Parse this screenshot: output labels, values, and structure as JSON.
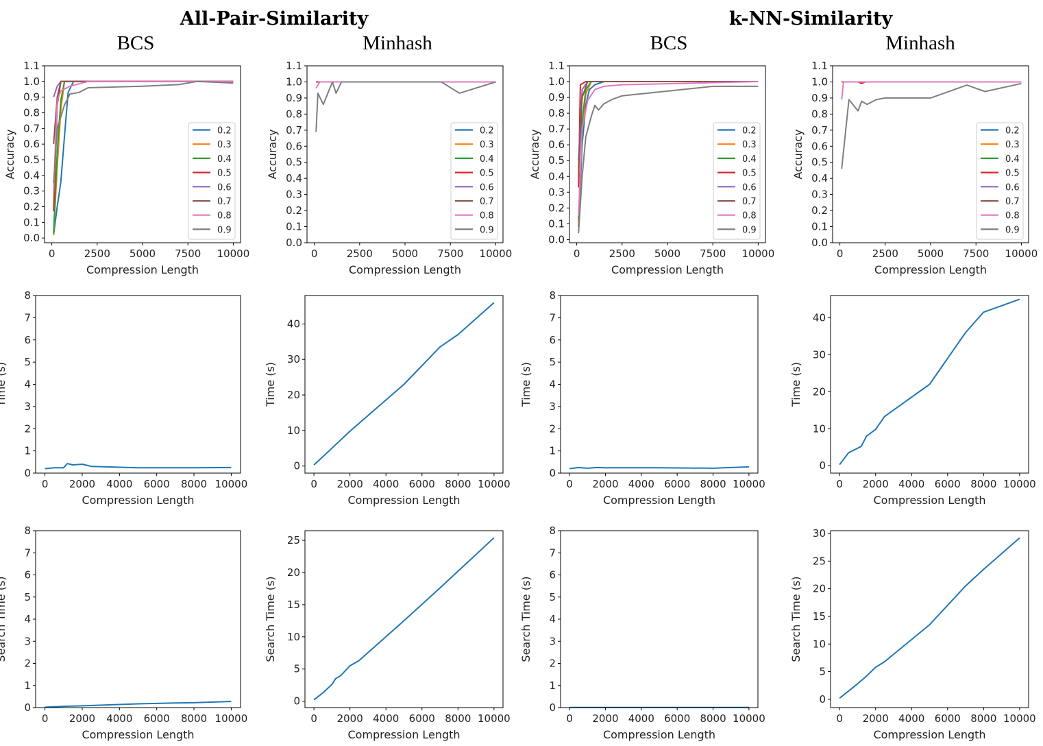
{
  "group_titles": [
    "All-Pair-Similarity",
    "k-NN-Similarity"
  ],
  "column_titles": [
    "BCS",
    "Minhash",
    "BCS",
    "Minhash"
  ],
  "colors": {
    "0.2": "#1f77b4",
    "0.3": "#ff7f0e",
    "0.4": "#2ca02c",
    "0.5": "#d62728",
    "0.6": "#9467bd",
    "0.7": "#8c564b",
    "0.8": "#e377c2",
    "0.9": "#7f7f7f",
    "time": "#1f77b4"
  },
  "chart_data": [
    {
      "id": "apsim-bcs-accuracy",
      "type": "line",
      "xlabel": "Compression Length",
      "ylabel": "Accuracy",
      "xlim": [
        -400,
        10400
      ],
      "ylim": [
        -0.03,
        1.1
      ],
      "xticks": [
        0,
        2500,
        5000,
        7500,
        10000
      ],
      "yticks": [
        0.0,
        0.1,
        0.2,
        0.3,
        0.4,
        0.5,
        0.6,
        0.7,
        0.8,
        0.9,
        1.0,
        1.1
      ],
      "ytick_labels": [
        "0.0",
        "0.1",
        "0.2",
        "0.3",
        "0.4",
        "0.5",
        "0.6",
        "0.7",
        "0.8",
        "0.9",
        "1.0",
        "1.1"
      ],
      "legend": "right",
      "series": [
        {
          "name": "0.2",
          "x": [
            100,
            300,
            500,
            700,
            900,
            1200,
            10000
          ],
          "y": [
            0.02,
            0.2,
            0.36,
            0.65,
            0.93,
            1.0,
            1.0
          ]
        },
        {
          "name": "0.3",
          "x": [
            100,
            300,
            500,
            700,
            10000
          ],
          "y": [
            0.02,
            0.45,
            0.82,
            1.0,
            1.0
          ]
        },
        {
          "name": "0.4",
          "x": [
            100,
            300,
            500,
            700,
            10000
          ],
          "y": [
            0.03,
            0.55,
            0.88,
            1.0,
            1.0
          ]
        },
        {
          "name": "0.5",
          "x": [
            100,
            300,
            500,
            10000
          ],
          "y": [
            0.17,
            0.85,
            1.0,
            1.0
          ]
        },
        {
          "name": "0.6",
          "x": [
            100,
            300,
            500,
            10000
          ],
          "y": [
            0.9,
            0.97,
            1.0,
            1.0
          ]
        },
        {
          "name": "0.7",
          "x": [
            100,
            300,
            500,
            10000
          ],
          "y": [
            0.6,
            0.9,
            1.0,
            1.0
          ]
        },
        {
          "name": "0.8",
          "x": [
            100,
            300,
            500,
            1000,
            2000,
            10000
          ],
          "y": [
            0.3,
            0.88,
            0.94,
            0.97,
            1.0,
            1.0
          ]
        },
        {
          "name": "0.9",
          "x": [
            100,
            300,
            700,
            1000,
            1500,
            2000,
            5000,
            7000,
            8000,
            10000
          ],
          "y": [
            0.35,
            0.7,
            0.85,
            0.92,
            0.93,
            0.96,
            0.97,
            0.98,
            1.0,
            0.99
          ]
        }
      ]
    },
    {
      "id": "apsim-minhash-accuracy",
      "type": "line",
      "xlabel": "Compression Length",
      "ylabel": "Accuracy",
      "xlim": [
        -400,
        10400
      ],
      "ylim": [
        0.0,
        1.1
      ],
      "xticks": [
        0,
        2500,
        5000,
        7500,
        10000
      ],
      "yticks": [
        0.0,
        0.1,
        0.2,
        0.3,
        0.4,
        0.5,
        0.6,
        0.7,
        0.8,
        0.9,
        1.0,
        1.1
      ],
      "ytick_labels": [
        "0.0",
        "0.1",
        "0.2",
        "0.3",
        "0.4",
        "0.5",
        "0.6",
        "0.7",
        "0.8",
        "0.9",
        "1.0",
        "1.1"
      ],
      "legend": "right",
      "series": [
        {
          "name": "0.2",
          "x": [
            100,
            10000
          ],
          "y": [
            1.0,
            1.0
          ]
        },
        {
          "name": "0.3",
          "x": [
            100,
            10000
          ],
          "y": [
            1.0,
            1.0
          ]
        },
        {
          "name": "0.4",
          "x": [
            100,
            10000
          ],
          "y": [
            1.0,
            1.0
          ]
        },
        {
          "name": "0.5",
          "x": [
            100,
            10000
          ],
          "y": [
            1.0,
            1.0
          ]
        },
        {
          "name": "0.6",
          "x": [
            100,
            10000
          ],
          "y": [
            1.0,
            1.0
          ]
        },
        {
          "name": "0.7",
          "x": [
            100,
            10000
          ],
          "y": [
            1.0,
            1.0
          ]
        },
        {
          "name": "0.8",
          "x": [
            100,
            300,
            10000
          ],
          "y": [
            0.96,
            1.0,
            1.0
          ]
        },
        {
          "name": "0.9",
          "x": [
            100,
            200,
            500,
            1000,
            1200,
            1500,
            7000,
            8000,
            10000
          ],
          "y": [
            0.69,
            0.93,
            0.86,
            1.0,
            0.93,
            1.0,
            1.0,
            0.93,
            1.0
          ]
        }
      ]
    },
    {
      "id": "knn-bcs-accuracy",
      "type": "line",
      "xlabel": "Compression Length",
      "ylabel": "Accuracy",
      "xlim": [
        -400,
        10400
      ],
      "ylim": [
        -0.02,
        1.1
      ],
      "xticks": [
        0,
        2500,
        5000,
        7500,
        10000
      ],
      "yticks": [
        0.0,
        0.1,
        0.2,
        0.3,
        0.4,
        0.5,
        0.6,
        0.7,
        0.8,
        0.9,
        1.0,
        1.1
      ],
      "ytick_labels": [
        "0.0",
        "0.1",
        "0.2",
        "0.3",
        "0.4",
        "0.5",
        "0.6",
        "0.7",
        "0.8",
        "0.9",
        "1.0",
        "1.1"
      ],
      "legend": "right",
      "series": [
        {
          "name": "0.2",
          "x": [
            100,
            300,
            500,
            700,
            1000,
            1500,
            10000
          ],
          "y": [
            0.08,
            0.6,
            0.85,
            0.95,
            0.98,
            1.0,
            1.0
          ]
        },
        {
          "name": "0.3",
          "x": [
            100,
            300,
            500,
            800,
            10000
          ],
          "y": [
            0.1,
            0.7,
            0.92,
            1.0,
            1.0
          ]
        },
        {
          "name": "0.4",
          "x": [
            100,
            300,
            500,
            800,
            10000
          ],
          "y": [
            0.12,
            0.75,
            0.95,
            1.0,
            1.0
          ]
        },
        {
          "name": "0.5",
          "x": [
            100,
            200,
            500,
            10000
          ],
          "y": [
            0.33,
            0.98,
            1.0,
            1.0
          ]
        },
        {
          "name": "0.6",
          "x": [
            100,
            300,
            600,
            10000
          ],
          "y": [
            0.5,
            0.95,
            1.0,
            1.0
          ]
        },
        {
          "name": "0.7",
          "x": [
            100,
            300,
            600,
            10000
          ],
          "y": [
            0.45,
            0.9,
            1.0,
            1.0
          ]
        },
        {
          "name": "0.8",
          "x": [
            100,
            300,
            600,
            1000,
            1500,
            2500,
            10000
          ],
          "y": [
            0.15,
            0.7,
            0.88,
            0.95,
            0.97,
            0.98,
            1.0
          ]
        },
        {
          "name": "0.9",
          "x": [
            100,
            300,
            500,
            800,
            1000,
            1200,
            1500,
            2000,
            2500,
            5000,
            7500,
            10000
          ],
          "y": [
            0.04,
            0.4,
            0.65,
            0.78,
            0.85,
            0.82,
            0.86,
            0.89,
            0.91,
            0.94,
            0.97,
            0.97
          ]
        }
      ]
    },
    {
      "id": "knn-minhash-accuracy",
      "type": "line",
      "xlabel": "Compression Length",
      "ylabel": "Accuracy",
      "xlim": [
        -400,
        10400
      ],
      "ylim": [
        0.0,
        1.1
      ],
      "xticks": [
        0,
        2500,
        5000,
        7500,
        10000
      ],
      "yticks": [
        0.0,
        0.1,
        0.2,
        0.3,
        0.4,
        0.5,
        0.6,
        0.7,
        0.8,
        0.9,
        1.0,
        1.1
      ],
      "ytick_labels": [
        "0.0",
        "0.1",
        "0.2",
        "0.3",
        "0.4",
        "0.5",
        "0.6",
        "0.7",
        "0.8",
        "0.9",
        "1.0",
        "1.1"
      ],
      "legend": "right",
      "series": [
        {
          "name": "0.2",
          "x": [
            100,
            10000
          ],
          "y": [
            1.0,
            1.0
          ]
        },
        {
          "name": "0.3",
          "x": [
            100,
            10000
          ],
          "y": [
            1.0,
            1.0
          ]
        },
        {
          "name": "0.4",
          "x": [
            100,
            10000
          ],
          "y": [
            1.0,
            1.0
          ]
        },
        {
          "name": "0.5",
          "x": [
            100,
            1000,
            1200,
            1400,
            10000
          ],
          "y": [
            1.0,
            1.0,
            0.99,
            1.0,
            1.0
          ]
        },
        {
          "name": "0.6",
          "x": [
            100,
            10000
          ],
          "y": [
            1.0,
            1.0
          ]
        },
        {
          "name": "0.7",
          "x": [
            100,
            10000
          ],
          "y": [
            1.0,
            1.0
          ]
        },
        {
          "name": "0.8",
          "x": [
            100,
            200,
            10000
          ],
          "y": [
            0.89,
            1.0,
            1.0
          ]
        },
        {
          "name": "0.9",
          "x": [
            100,
            500,
            1000,
            1200,
            1500,
            2000,
            2500,
            5000,
            7000,
            8000,
            10000
          ],
          "y": [
            0.46,
            0.89,
            0.82,
            0.88,
            0.86,
            0.89,
            0.9,
            0.9,
            0.98,
            0.94,
            0.99
          ]
        }
      ]
    },
    {
      "id": "apsim-bcs-time",
      "type": "line",
      "xlabel": "Compression Length",
      "ylabel": "Time (s)",
      "xlim": [
        -500,
        10500
      ],
      "ylim": [
        0,
        8
      ],
      "xticks": [
        0,
        2000,
        4000,
        6000,
        8000,
        10000
      ],
      "yticks": [
        0,
        1,
        2,
        3,
        4,
        5,
        6,
        7,
        8
      ],
      "ytick_labels": [
        "0",
        "1",
        "2",
        "3",
        "4",
        "5",
        "6",
        "7",
        "8"
      ],
      "series": [
        {
          "name": "time",
          "x": [
            0,
            500,
            1000,
            1200,
            1500,
            2000,
            2500,
            5000,
            8000,
            10000
          ],
          "y": [
            0.2,
            0.24,
            0.24,
            0.43,
            0.37,
            0.4,
            0.3,
            0.24,
            0.24,
            0.25
          ]
        }
      ]
    },
    {
      "id": "apsim-minhash-time",
      "type": "line",
      "xlabel": "Compression Length",
      "ylabel": "Time (s)",
      "xlim": [
        -500,
        10500
      ],
      "ylim": [
        -2,
        48
      ],
      "xticks": [
        0,
        2000,
        4000,
        6000,
        8000,
        10000
      ],
      "yticks": [
        0,
        10,
        20,
        30,
        40
      ],
      "ytick_labels": [
        "0",
        "10",
        "20",
        "30",
        "40"
      ],
      "series": [
        {
          "name": "time",
          "x": [
            0,
            1000,
            2000,
            5000,
            7000,
            8000,
            10000
          ],
          "y": [
            0.3,
            5,
            9.8,
            23,
            33.5,
            37,
            46
          ]
        }
      ]
    },
    {
      "id": "knn-bcs-time",
      "type": "line",
      "xlabel": "Compression Length",
      "ylabel": "Time (s)",
      "xlim": [
        -500,
        10500
      ],
      "ylim": [
        0,
        8
      ],
      "xticks": [
        0,
        2000,
        4000,
        6000,
        8000,
        10000
      ],
      "yticks": [
        0,
        1,
        2,
        3,
        4,
        5,
        6,
        7,
        8
      ],
      "ytick_labels": [
        "0",
        "1",
        "2",
        "3",
        "4",
        "5",
        "6",
        "7",
        "8"
      ],
      "series": [
        {
          "name": "time",
          "x": [
            0,
            500,
            1000,
            1500,
            2000,
            5000,
            8000,
            10000
          ],
          "y": [
            0.2,
            0.25,
            0.22,
            0.25,
            0.24,
            0.24,
            0.22,
            0.28
          ]
        }
      ]
    },
    {
      "id": "knn-minhash-time",
      "type": "line",
      "xlabel": "Compression Length",
      "ylabel": "Time (s)",
      "xlim": [
        -500,
        10500
      ],
      "ylim": [
        -2,
        46
      ],
      "xticks": [
        0,
        2000,
        4000,
        6000,
        8000,
        10000
      ],
      "yticks": [
        0,
        10,
        20,
        30,
        40
      ],
      "ytick_labels": [
        "0",
        "10",
        "20",
        "30",
        "40"
      ],
      "series": [
        {
          "name": "time",
          "x": [
            0,
            500,
            1200,
            1500,
            2000,
            2500,
            5000,
            7000,
            8000,
            10000
          ],
          "y": [
            0.3,
            3.5,
            5.2,
            8,
            9.8,
            13.3,
            22,
            36,
            41.5,
            45
          ]
        }
      ]
    },
    {
      "id": "apsim-bcs-search-time",
      "type": "line",
      "xlabel": "Compression Length",
      "ylabel": "Search Time (s)",
      "xlim": [
        -500,
        10500
      ],
      "ylim": [
        0,
        8
      ],
      "xticks": [
        0,
        2000,
        4000,
        6000,
        8000,
        10000
      ],
      "yticks": [
        0,
        1,
        2,
        3,
        4,
        5,
        6,
        7,
        8
      ],
      "ytick_labels": [
        "0",
        "1",
        "2",
        "3",
        "4",
        "5",
        "6",
        "7",
        "8"
      ],
      "series": [
        {
          "name": "time",
          "x": [
            0,
            1000,
            2000,
            5000,
            7000,
            8000,
            10000
          ],
          "y": [
            0.02,
            0.06,
            0.08,
            0.17,
            0.21,
            0.22,
            0.28
          ]
        }
      ]
    },
    {
      "id": "apsim-minhash-search-time",
      "type": "line",
      "xlabel": "Compression Length",
      "ylabel": "Search Time (s)",
      "xlim": [
        -500,
        10500
      ],
      "ylim": [
        -1,
        26.5
      ],
      "xticks": [
        0,
        2000,
        4000,
        6000,
        8000,
        10000
      ],
      "yticks": [
        0,
        5,
        10,
        15,
        20,
        25
      ],
      "ytick_labels": [
        "0",
        "5",
        "10",
        "15",
        "20",
        "25"
      ],
      "series": [
        {
          "name": "time",
          "x": [
            0,
            500,
            1000,
            1200,
            1500,
            2000,
            2500,
            5000,
            7000,
            8000,
            10000
          ],
          "y": [
            0.2,
            1.3,
            2.6,
            3.5,
            4.0,
            5.5,
            6.3,
            12.5,
            17.6,
            20.2,
            25.4
          ]
        }
      ]
    },
    {
      "id": "knn-bcs-search-time",
      "type": "line",
      "xlabel": "Compression Length",
      "ylabel": "Search Time (s)",
      "xlim": [
        -500,
        10500
      ],
      "ylim": [
        0,
        8
      ],
      "xticks": [
        0,
        2000,
        4000,
        6000,
        8000,
        10000
      ],
      "yticks": [
        0,
        1,
        2,
        3,
        4,
        5,
        6,
        7,
        8
      ],
      "ytick_labels": [
        "0",
        "1",
        "2",
        "3",
        "4",
        "5",
        "6",
        "7",
        "8"
      ],
      "series": [
        {
          "name": "time",
          "x": [
            0,
            10000
          ],
          "y": [
            0.01,
            0.01
          ]
        }
      ]
    },
    {
      "id": "knn-minhash-search-time",
      "type": "line",
      "xlabel": "Compression Length",
      "ylabel": "Search Time (s)",
      "xlim": [
        -500,
        10500
      ],
      "ylim": [
        -1.5,
        30.5
      ],
      "xticks": [
        0,
        2000,
        4000,
        6000,
        8000,
        10000
      ],
      "yticks": [
        0,
        5,
        10,
        15,
        20,
        25,
        30
      ],
      "ytick_labels": [
        "0",
        "5",
        "10",
        "15",
        "20",
        "25",
        "30"
      ],
      "series": [
        {
          "name": "time",
          "x": [
            0,
            500,
            1000,
            1500,
            2000,
            2500,
            5000,
            7000,
            8000,
            10000
          ],
          "y": [
            0.2,
            1.5,
            2.8,
            4.2,
            5.8,
            6.8,
            13.5,
            20.5,
            23.5,
            29.2
          ]
        }
      ]
    }
  ]
}
